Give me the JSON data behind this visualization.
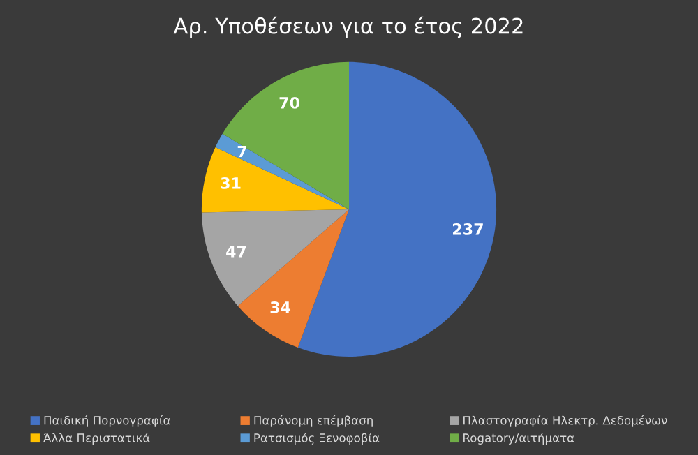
{
  "chart_data": {
    "type": "pie",
    "title": "Αρ. Υποθέσεων για το έτος 2022",
    "categories": [
      "Παιδική Πορνογραφία",
      "Παράνομη επέμβαση",
      "Πλαστογραφία Ηλεκτρ. Δεδομένων",
      "Άλλα Περιστατικά",
      "Ρατσισμός Ξενοφοβία",
      "Rogatory/αιτήματα"
    ],
    "values": [
      237,
      34,
      47,
      31,
      7,
      70
    ],
    "colors": [
      "#4472c4",
      "#ed7d31",
      "#a5a5a5",
      "#ffc000",
      "#5b9bd5",
      "#70ad47"
    ],
    "data_labels": true,
    "legend": "bottom"
  }
}
